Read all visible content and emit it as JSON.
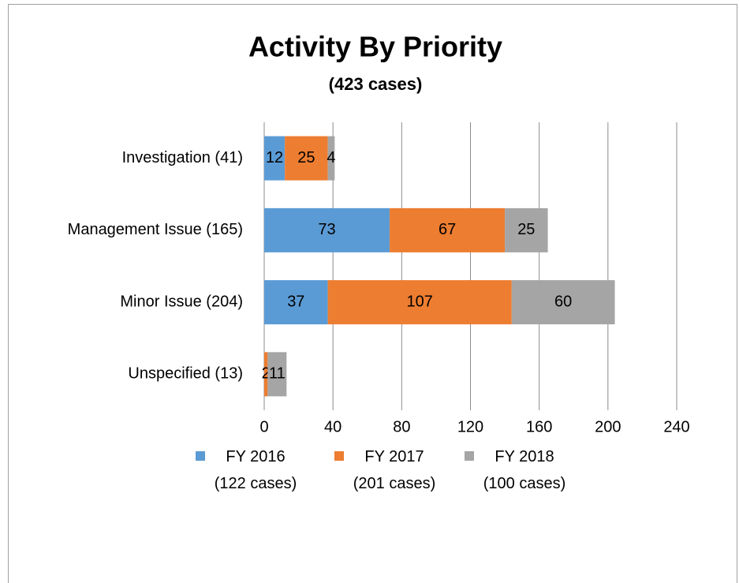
{
  "chart_data": {
    "type": "stacked_barh",
    "title": "Activity By Priority",
    "subtitle": "(423 cases)",
    "categories": [
      "Investigation (41)",
      "Management Issue (165)",
      "Minor Issue (204)",
      "Unspecified (13)"
    ],
    "series": [
      {
        "name": "FY 2016\n(122 cases)",
        "color": "#5b9bd5",
        "values": [
          12,
          73,
          37,
          0
        ]
      },
      {
        "name": "FY 2017\n(201 cases)",
        "color": "#ed7d31",
        "values": [
          25,
          67,
          107,
          2
        ]
      },
      {
        "name": "FY 2018\n(100 cases)",
        "color": "#a5a5a5",
        "values": [
          4,
          25,
          60,
          11
        ]
      }
    ],
    "xlim": [
      0,
      240
    ],
    "xticks": [
      0,
      40,
      80,
      120,
      160,
      200,
      240
    ],
    "grid": true,
    "legend": "bottom"
  }
}
